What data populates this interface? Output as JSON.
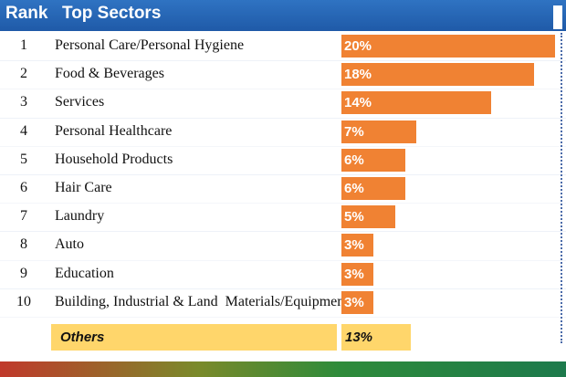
{
  "header": {
    "rank_label": "Rank",
    "sectors_label": "Top Sectors"
  },
  "chart_data": {
    "type": "bar",
    "orientation": "horizontal",
    "title": "Top Sectors",
    "categories": [
      "Personal Care/Personal Hygiene",
      "Food & Beverages",
      "Services",
      "Personal Healthcare",
      "Household Products",
      "Hair Care",
      "Laundry",
      "Auto",
      "Education",
      "Building, Industrial & Land  Materials/Equipments"
    ],
    "ranks": [
      "1",
      "2",
      "3",
      "4",
      "5",
      "6",
      "7",
      "8",
      "9",
      "10"
    ],
    "values": [
      20,
      18,
      14,
      7,
      6,
      6,
      5,
      3,
      3,
      3
    ],
    "value_labels": [
      "20%",
      "18%",
      "14%",
      "7%",
      "6%",
      "6%",
      "5%",
      "3%",
      "3%",
      "3%"
    ],
    "xlim": [
      0,
      20
    ],
    "colors": {
      "bar": "#f08233",
      "others": "#ffd66b",
      "header": "#2466b3"
    }
  },
  "others": {
    "label": "Others",
    "value_label": "13%"
  }
}
